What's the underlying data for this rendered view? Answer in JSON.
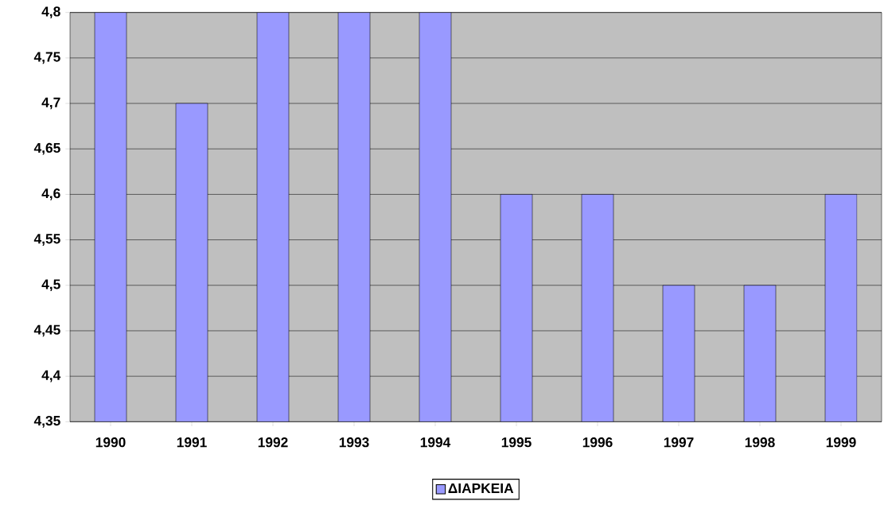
{
  "chart_data": {
    "type": "bar",
    "categories": [
      "1990",
      "1991",
      "1992",
      "1993",
      "1994",
      "1995",
      "1996",
      "1997",
      "1998",
      "1999"
    ],
    "series": [
      {
        "name": "ΔΙΑΡΚΕΙΑ",
        "color": "#9999ff",
        "values": [
          4.8,
          4.7,
          4.8,
          4.8,
          4.8,
          4.6,
          4.6,
          4.5,
          4.5,
          4.6
        ]
      }
    ],
    "ylim": [
      4.35,
      4.8
    ],
    "yticks": [
      {
        "value": 4.35,
        "label": "4,35"
      },
      {
        "value": 4.4,
        "label": "4,4"
      },
      {
        "value": 4.45,
        "label": "4,45"
      },
      {
        "value": 4.5,
        "label": "4,5"
      },
      {
        "value": 4.55,
        "label": "4,55"
      },
      {
        "value": 4.6,
        "label": "4,6"
      },
      {
        "value": 4.65,
        "label": "4,65"
      },
      {
        "value": 4.7,
        "label": "4,7"
      },
      {
        "value": 4.75,
        "label": "4,75"
      },
      {
        "value": 4.8,
        "label": "4,8"
      }
    ],
    "grid": "y",
    "legend": "bottom"
  }
}
